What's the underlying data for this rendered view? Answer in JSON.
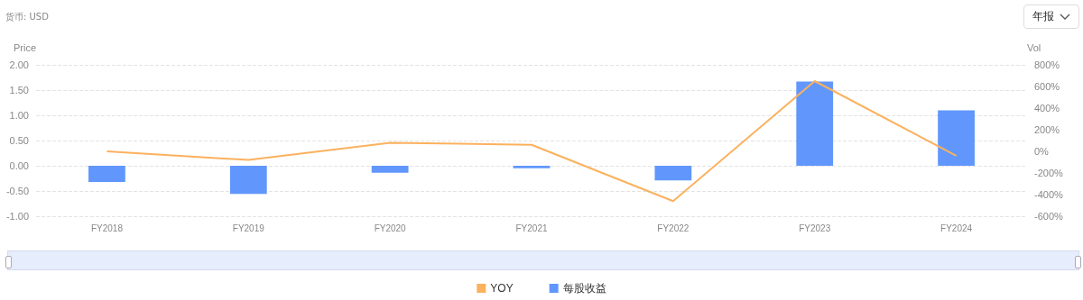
{
  "chart_data": {
    "type": "bar",
    "annotations": [
      "货币: USD",
      "年报"
    ],
    "ylabel": "Price",
    "y2label": "Vol",
    "categories": [
      "FY2018",
      "FY2019",
      "FY2020",
      "FY2021",
      "FY2022",
      "FY2023",
      "FY2024"
    ],
    "series": [
      {
        "name": "YOY",
        "type": "line",
        "axis": "y2",
        "color": "#fbb15e",
        "values": [
          0,
          -80,
          80,
          60,
          -460,
          650,
          -40
        ]
      },
      {
        "name": "每股收益",
        "color": "#6197fd",
        "values": [
          -0.32,
          -0.56,
          -0.14,
          -0.05,
          -0.29,
          1.67,
          1.1
        ]
      }
    ],
    "ylim": [
      -1,
      2
    ],
    "yticks": [
      {
        "value": -1,
        "label": "-1.00"
      },
      {
        "value": -0.5,
        "label": "-0.50"
      },
      {
        "value": 0,
        "label": "0.00"
      },
      {
        "value": 0.5,
        "label": "0.50"
      },
      {
        "value": 1,
        "label": "1.00"
      },
      {
        "value": 1.5,
        "label": "1.50"
      },
      {
        "value": 2,
        "label": "2.00"
      }
    ],
    "y2lim": [
      -600,
      800
    ],
    "y2ticks": [
      {
        "value": -600,
        "label": "-600%"
      },
      {
        "value": -400,
        "label": "-400%"
      },
      {
        "value": -200,
        "label": "-200%"
      },
      {
        "value": 0,
        "label": "0%"
      },
      {
        "value": 200,
        "label": "200%"
      },
      {
        "value": 400,
        "label": "400%"
      },
      {
        "value": 600,
        "label": "600%"
      },
      {
        "value": 800,
        "label": "800%"
      }
    ],
    "grid": "y",
    "legend": "bottom",
    "marker": "none"
  }
}
